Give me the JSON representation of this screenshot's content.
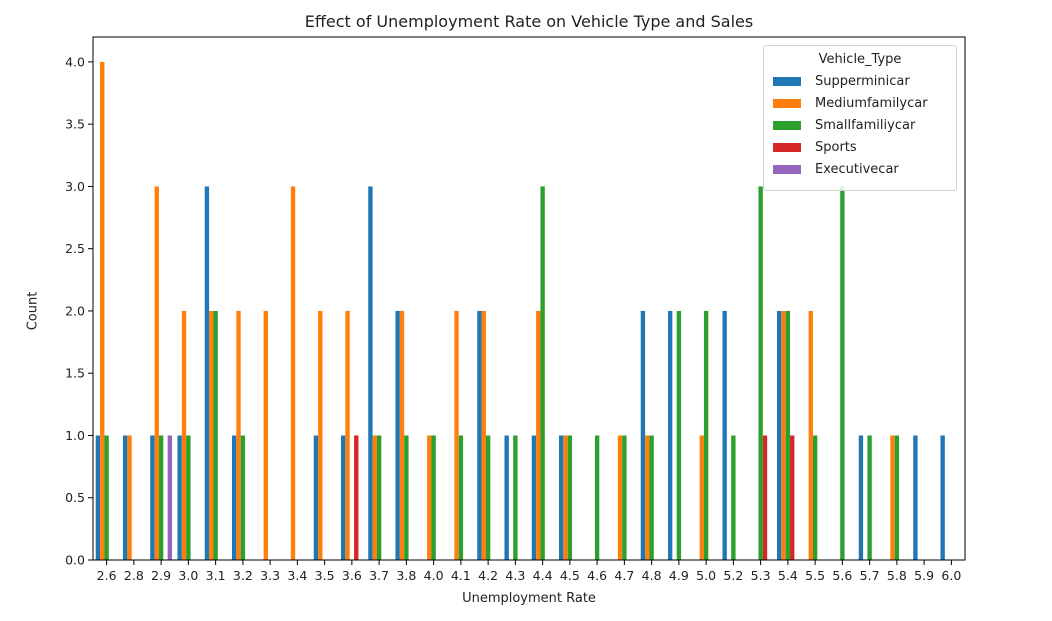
{
  "chart_data": {
    "type": "bar",
    "title": "Effect of Unemployment Rate on Vehicle Type and Sales",
    "xlabel": "Unemployment Rate",
    "ylabel": "Count",
    "ylim": [
      0,
      4.2
    ],
    "yticks": [
      "0.0",
      "0.5",
      "1.0",
      "1.5",
      "2.0",
      "2.5",
      "3.0",
      "3.5",
      "4.0"
    ],
    "categories": [
      "2.6",
      "2.8",
      "2.9",
      "3.0",
      "3.1",
      "3.2",
      "3.3",
      "3.4",
      "3.5",
      "3.6",
      "3.7",
      "3.8",
      "4.0",
      "4.1",
      "4.2",
      "4.3",
      "4.4",
      "4.5",
      "4.6",
      "4.7",
      "4.8",
      "4.9",
      "5.0",
      "5.2",
      "5.3",
      "5.4",
      "5.5",
      "5.6",
      "5.7",
      "5.8",
      "5.9",
      "6.0"
    ],
    "legend_title": "Vehicle_Type",
    "legend_position": "top-right",
    "grid": false,
    "series": [
      {
        "name": "Supperminicar",
        "color": "#1f77b4",
        "values": [
          1,
          1,
          1,
          1,
          3,
          1,
          0,
          0,
          1,
          1,
          3,
          2,
          0,
          0,
          2,
          1,
          1,
          1,
          0,
          0,
          2,
          2,
          0,
          2,
          0,
          2,
          0,
          0,
          1,
          0,
          1,
          1
        ]
      },
      {
        "name": "Mediumfamilycar",
        "color": "#ff7f0e",
        "values": [
          4,
          1,
          3,
          2,
          2,
          2,
          2,
          3,
          2,
          2,
          1,
          2,
          1,
          2,
          2,
          0,
          2,
          1,
          0,
          1,
          1,
          0,
          1,
          0,
          0,
          2,
          2,
          0,
          0,
          1,
          0,
          0
        ]
      },
      {
        "name": "Smallfamiliycar",
        "color": "#2ca02c",
        "values": [
          1,
          0,
          1,
          1,
          2,
          1,
          0,
          0,
          0,
          0,
          1,
          1,
          1,
          1,
          1,
          1,
          3,
          1,
          1,
          1,
          1,
          2,
          2,
          1,
          3,
          2,
          1,
          3,
          1,
          1,
          0,
          0
        ]
      },
      {
        "name": "Sports",
        "color": "#d62728",
        "values": [
          0,
          0,
          0,
          0,
          0,
          0,
          0,
          0,
          0,
          1,
          0,
          0,
          0,
          0,
          0,
          0,
          0,
          0,
          0,
          0,
          0,
          0,
          0,
          0,
          1,
          1,
          0,
          0,
          0,
          0,
          0,
          0
        ]
      },
      {
        "name": "Executivecar",
        "color": "#9467bd",
        "values": [
          0,
          0,
          1,
          0,
          0,
          0,
          0,
          0,
          0,
          0,
          0,
          0,
          0,
          0,
          0,
          0,
          0,
          0,
          0,
          0,
          0,
          0,
          0,
          0,
          0,
          0,
          0,
          0,
          0,
          0,
          0,
          0
        ]
      }
    ]
  }
}
